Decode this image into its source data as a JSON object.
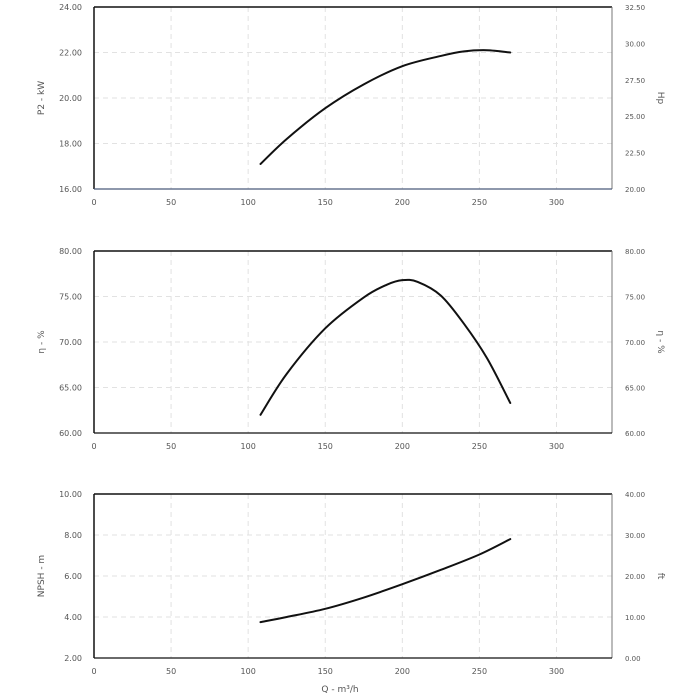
{
  "chart_data": [
    {
      "type": "line",
      "ylabel": "P2 - kW",
      "ylabel_right": "Hp",
      "xlim": [
        0,
        336
      ],
      "ylim": [
        16,
        24
      ],
      "ylim_right": [
        20,
        32.5
      ],
      "x_ticks": [
        "0",
        "50",
        "100",
        "150",
        "200",
        "250",
        "300"
      ],
      "y_ticks": [
        "16.00",
        "18.00",
        "20.00",
        "22.00",
        "24.00"
      ],
      "y_ticks_right": [
        "20.00",
        "22.50",
        "25.00",
        "27.50",
        "30.00",
        "32.50"
      ],
      "grid": true,
      "series": [
        {
          "x": [
            108,
            125,
            150,
            175,
            200,
            225,
            240,
            255,
            270
          ],
          "y": [
            17.1,
            18.2,
            19.55,
            20.6,
            21.4,
            21.85,
            22.05,
            22.1,
            22.0
          ]
        }
      ]
    },
    {
      "type": "line",
      "ylabel": "η - %",
      "ylabel_right": "η - %",
      "xlim": [
        0,
        336
      ],
      "ylim": [
        60,
        80
      ],
      "ylim_right": [
        60,
        80
      ],
      "x_ticks": [
        "0",
        "50",
        "100",
        "150",
        "200",
        "250",
        "300"
      ],
      "y_ticks": [
        "60.00",
        "65.00",
        "70.00",
        "75.00",
        "80.00"
      ],
      "y_ticks_right": [
        "60.00",
        "65.00",
        "70.00",
        "75.00",
        "80.00"
      ],
      "grid": true,
      "series": [
        {
          "x": [
            108,
            125,
            150,
            175,
            190,
            200,
            210,
            225,
            240,
            255,
            270
          ],
          "y": [
            62.0,
            66.5,
            71.5,
            74.9,
            76.3,
            76.8,
            76.6,
            75.1,
            72.0,
            68.2,
            63.3
          ]
        }
      ]
    },
    {
      "type": "line",
      "ylabel": "NPSH - m",
      "ylabel_right": "ft",
      "xlabel": "Q - m³/h",
      "xlim": [
        0,
        336
      ],
      "ylim": [
        2,
        10
      ],
      "ylim_right": [
        0,
        40
      ],
      "x_ticks": [
        "0",
        "50",
        "100",
        "150",
        "200",
        "250",
        "300"
      ],
      "y_ticks": [
        "2.00",
        "4.00",
        "6.00",
        "8.00",
        "10.00"
      ],
      "y_ticks_right": [
        "0.00",
        "10.00",
        "20.00",
        "30.00",
        "40.00"
      ],
      "grid": true,
      "series": [
        {
          "x": [
            108,
            125,
            150,
            175,
            200,
            225,
            250,
            270
          ],
          "y": [
            3.75,
            4.0,
            4.4,
            4.95,
            5.6,
            6.3,
            7.05,
            7.8
          ]
        }
      ]
    }
  ]
}
